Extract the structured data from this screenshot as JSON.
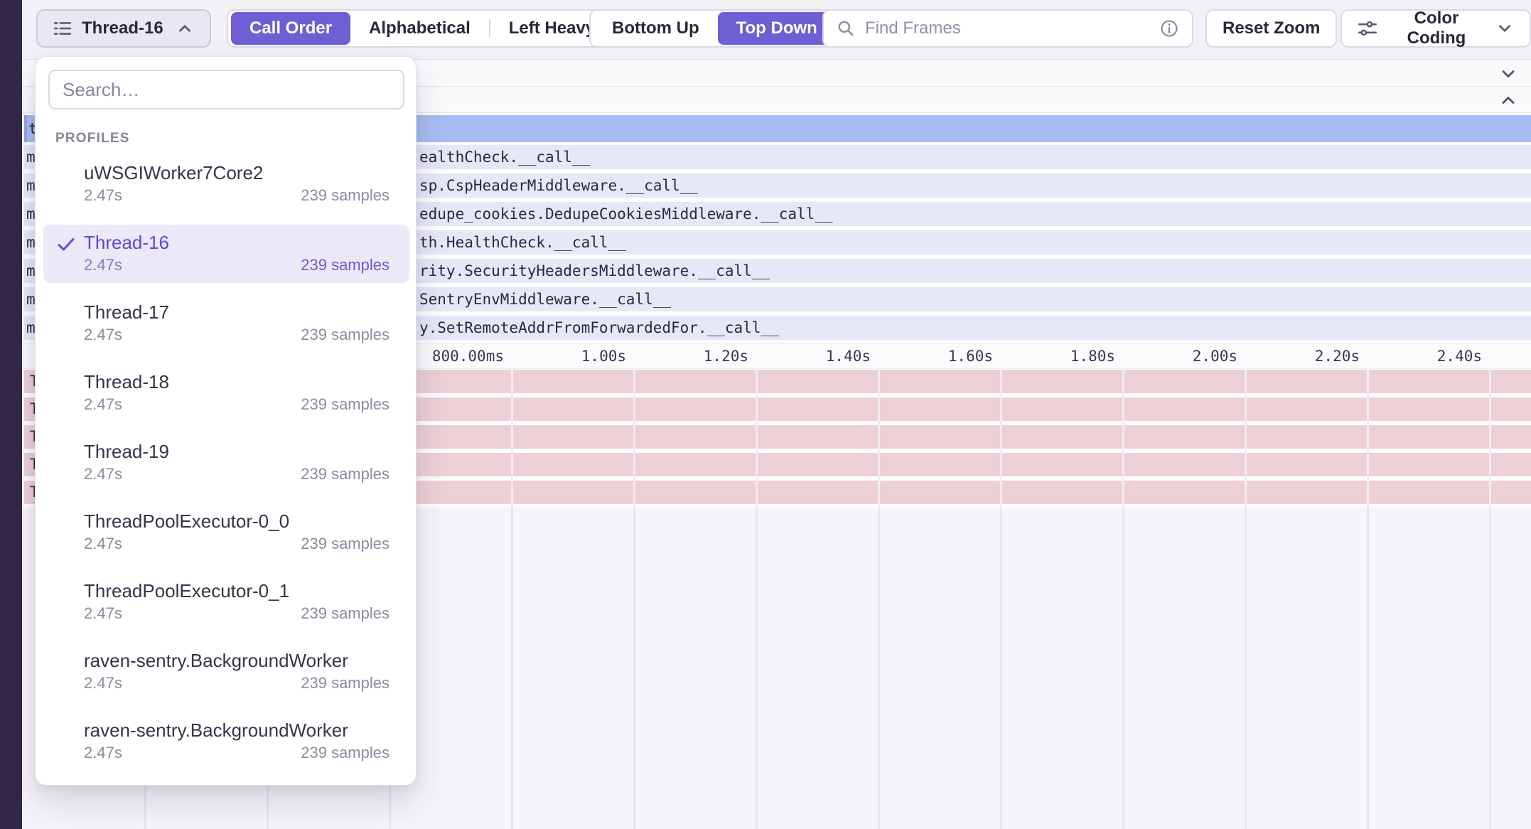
{
  "toolbar": {
    "thread_selector_label": "Thread-16",
    "view_order": {
      "options": [
        "Call Order",
        "Alphabetical",
        "Left Heavy"
      ],
      "active": "Call Order"
    },
    "direction": {
      "options": [
        "Bottom Up",
        "Top Down"
      ],
      "active": "Top Down"
    },
    "find_frames_placeholder": "Find Frames",
    "reset_zoom_label": "Reset Zoom",
    "color_coding_label": "Color Coding"
  },
  "profiles_dropdown": {
    "search_placeholder": "Search…",
    "section_label": "PROFILES",
    "selected": "Thread-16",
    "items": [
      {
        "name": "uWSGIWorker7Core2",
        "duration": "2.47s",
        "samples": "239 samples",
        "selected": false
      },
      {
        "name": "Thread-16",
        "duration": "2.47s",
        "samples": "239 samples",
        "selected": true
      },
      {
        "name": "Thread-17",
        "duration": "2.47s",
        "samples": "239 samples",
        "selected": false
      },
      {
        "name": "Thread-18",
        "duration": "2.47s",
        "samples": "239 samples",
        "selected": false
      },
      {
        "name": "Thread-19",
        "duration": "2.47s",
        "samples": "239 samples",
        "selected": false
      },
      {
        "name": "ThreadPoolExecutor-0_0",
        "duration": "2.47s",
        "samples": "239 samples",
        "selected": false
      },
      {
        "name": "ThreadPoolExecutor-0_1",
        "duration": "2.47s",
        "samples": "239 samples",
        "selected": false
      },
      {
        "name": "raven-sentry.BackgroundWorker",
        "duration": "2.47s",
        "samples": "239 samples",
        "selected": false
      },
      {
        "name": "raven-sentry.BackgroundWorker",
        "duration": "2.47s",
        "samples": "239 samples",
        "selected": false
      }
    ]
  },
  "flamegraph": {
    "root_row_letter": "t",
    "frame_rows": [
      {
        "left_letter": "m",
        "visible_text": "ealthCheck.__call__"
      },
      {
        "left_letter": "m",
        "visible_text": "sp.CspHeaderMiddleware.__call__"
      },
      {
        "left_letter": "m",
        "visible_text": "edupe_cookies.DedupeCookiesMiddleware.__call__"
      },
      {
        "left_letter": "m",
        "visible_text": "th.HealthCheck.__call__"
      },
      {
        "left_letter": "m",
        "visible_text": "rity.SecurityHeadersMiddleware.__call__"
      },
      {
        "left_letter": "m",
        "visible_text": "SentryEnvMiddleware.__call__"
      },
      {
        "left_letter": "m",
        "visible_text": "y.SetRemoteAddrFromForwardedFor.__call__"
      }
    ],
    "axis_ticks": [
      "800.00ms",
      "1.00s",
      "1.20s",
      "1.40s",
      "1.60s",
      "1.80s",
      "2.00s",
      "2.20s",
      "2.40s"
    ],
    "pink_rows": [
      {
        "left_letter": "T"
      },
      {
        "left_letter": "T"
      },
      {
        "left_letter": "T"
      },
      {
        "left_letter": "T"
      },
      {
        "left_letter": "T"
      }
    ]
  },
  "colors": {
    "accent_purple": "#6e5fd5",
    "sidebar_dark": "#322747",
    "root_row_blue": "#a7bcf0",
    "frame_row_lavender": "#e6e8f7",
    "hot_row_pink": "#ecd0d5",
    "selected_row_bg": "#ebe8f8"
  }
}
